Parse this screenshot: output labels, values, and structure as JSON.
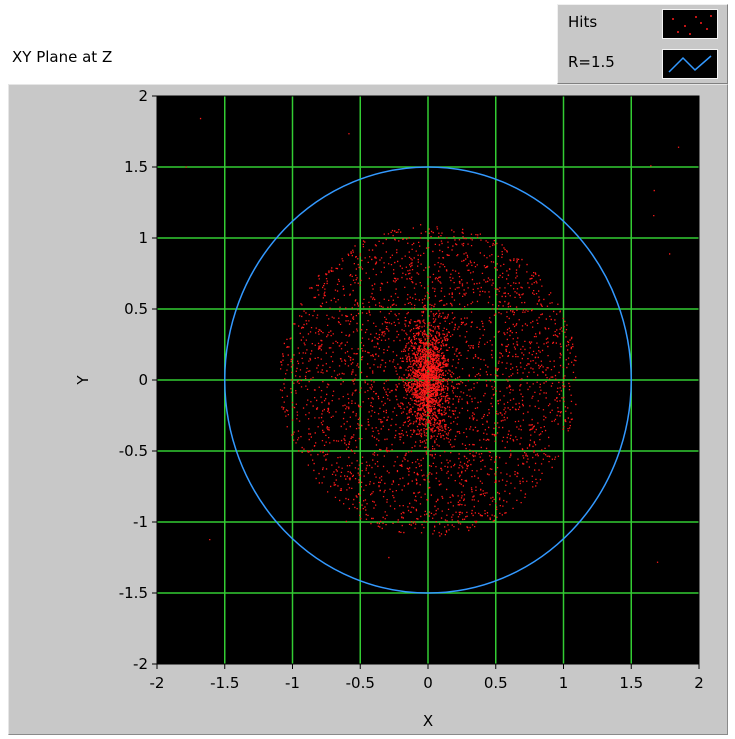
{
  "chart_data": {
    "type": "scatter",
    "title": "XY Plane at Z",
    "xlabel": "X",
    "ylabel": "Y",
    "xlim": [
      -2,
      2
    ],
    "ylim": [
      -2,
      2
    ],
    "xticks": [
      "-2",
      "-1.5",
      "-1",
      "-0.5",
      "0",
      "0.5",
      "1",
      "1.5",
      "2"
    ],
    "yticks": [
      "2",
      "1.5",
      "1",
      "0.5",
      "0",
      "-0.5",
      "-1",
      "-1.5",
      "-2"
    ],
    "grid": true,
    "background": "#000000",
    "grid_color": "#33cc33",
    "legend_position": "top-right",
    "series": [
      {
        "name": "Hits",
        "type": "scatter",
        "color": "#ff1a1a",
        "distribution": {
          "center": [
            0,
            0
          ],
          "core_std": 0.15,
          "halo_radius": 1.1,
          "approx_count": 9000
        }
      },
      {
        "name": "R=1.5",
        "type": "circle",
        "color": "#3399ff",
        "center": [
          0,
          0
        ],
        "radius": 1.5
      }
    ]
  }
}
